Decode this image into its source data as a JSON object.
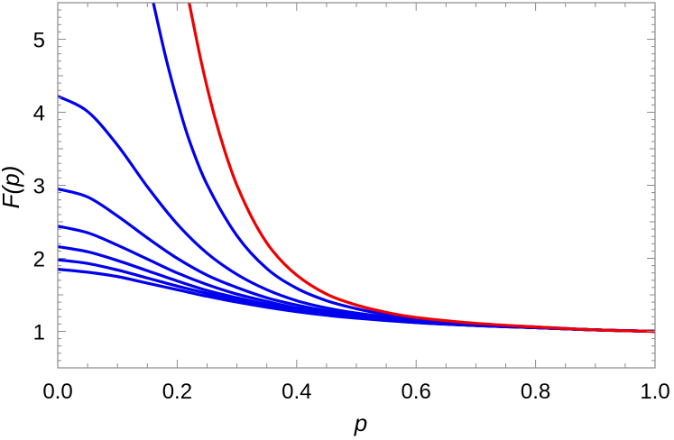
{
  "chart_data": {
    "type": "line",
    "title": "",
    "xlabel": "p",
    "ylabel": "F(p)",
    "xlim": [
      0.0,
      1.0
    ],
    "ylim": [
      0.5,
      5.5
    ],
    "grid": false,
    "legend": "none",
    "x_ticks": [
      "0.0",
      "0.2",
      "0.4",
      "0.6",
      "0.8",
      "1.0"
    ],
    "y_ticks": [
      "1",
      "2",
      "3",
      "4",
      "5"
    ],
    "colors": {
      "blue": "#0000ee",
      "red": "#ee0000"
    },
    "series": [
      {
        "color": "#0000ee",
        "x": [
          0.0,
          0.05,
          0.1,
          0.15,
          0.2,
          0.25,
          0.3,
          0.35,
          0.4,
          0.45,
          0.5,
          0.6,
          0.7,
          0.8,
          0.9,
          1.0
        ],
        "y": [
          1.85,
          1.81,
          1.75,
          1.66,
          1.57,
          1.48,
          1.4,
          1.33,
          1.27,
          1.22,
          1.18,
          1.12,
          1.08,
          1.05,
          1.02,
          1.0
        ]
      },
      {
        "color": "#0000ee",
        "x": [
          0.0,
          0.05,
          0.1,
          0.15,
          0.2,
          0.25,
          0.3,
          0.35,
          0.4,
          0.45,
          0.5,
          0.6,
          0.7,
          0.8,
          0.9,
          1.0
        ],
        "y": [
          1.98,
          1.93,
          1.84,
          1.73,
          1.62,
          1.52,
          1.43,
          1.35,
          1.28,
          1.23,
          1.19,
          1.12,
          1.08,
          1.05,
          1.02,
          1.0
        ]
      },
      {
        "color": "#0000ee",
        "x": [
          0.0,
          0.05,
          0.1,
          0.15,
          0.2,
          0.25,
          0.3,
          0.35,
          0.4,
          0.45,
          0.5,
          0.6,
          0.7,
          0.8,
          0.9,
          1.0
        ],
        "y": [
          2.16,
          2.09,
          1.97,
          1.83,
          1.69,
          1.56,
          1.46,
          1.37,
          1.3,
          1.24,
          1.2,
          1.13,
          1.08,
          1.05,
          1.02,
          1.0
        ]
      },
      {
        "color": "#0000ee",
        "x": [
          0.0,
          0.05,
          0.1,
          0.15,
          0.2,
          0.25,
          0.3,
          0.35,
          0.4,
          0.45,
          0.5,
          0.6,
          0.7,
          0.8,
          0.9,
          1.0
        ],
        "y": [
          2.44,
          2.35,
          2.18,
          1.99,
          1.8,
          1.64,
          1.51,
          1.41,
          1.32,
          1.26,
          1.21,
          1.13,
          1.08,
          1.05,
          1.02,
          1.0
        ]
      },
      {
        "color": "#0000ee",
        "x": [
          0.0,
          0.05,
          0.1,
          0.15,
          0.2,
          0.25,
          0.3,
          0.35,
          0.4,
          0.45,
          0.5,
          0.6,
          0.7,
          0.8,
          0.9,
          1.0
        ],
        "y": [
          2.95,
          2.84,
          2.58,
          2.28,
          2.0,
          1.77,
          1.6,
          1.46,
          1.36,
          1.28,
          1.22,
          1.14,
          1.09,
          1.05,
          1.02,
          1.0
        ]
      },
      {
        "color": "#0000ee",
        "x": [
          0.0,
          0.05,
          0.1,
          0.15,
          0.2,
          0.25,
          0.3,
          0.35,
          0.4,
          0.45,
          0.5,
          0.6,
          0.7,
          0.8,
          0.9,
          1.0
        ],
        "y": [
          4.22,
          4.01,
          3.55,
          2.98,
          2.47,
          2.07,
          1.78,
          1.57,
          1.42,
          1.32,
          1.25,
          1.15,
          1.09,
          1.05,
          1.02,
          1.0
        ]
      },
      {
        "color": "#0000ee",
        "x": [
          0.16,
          0.18,
          0.2,
          0.22,
          0.25,
          0.3,
          0.35,
          0.4,
          0.45,
          0.5,
          0.55,
          0.6,
          0.7,
          0.8,
          0.9,
          1.0
        ],
        "y": [
          5.5,
          4.78,
          4.16,
          3.62,
          3.01,
          2.31,
          1.86,
          1.59,
          1.42,
          1.31,
          1.23,
          1.17,
          1.1,
          1.06,
          1.02,
          1.0
        ]
      },
      {
        "color": "#ee0000",
        "x": [
          0.22,
          0.24,
          0.26,
          0.28,
          0.3,
          0.33,
          0.36,
          0.4,
          0.45,
          0.5,
          0.55,
          0.6,
          0.7,
          0.8,
          0.9,
          1.0
        ],
        "y": [
          5.5,
          4.7,
          4.02,
          3.46,
          3.0,
          2.48,
          2.1,
          1.77,
          1.51,
          1.36,
          1.26,
          1.19,
          1.11,
          1.06,
          1.02,
          1.0
        ]
      }
    ]
  }
}
